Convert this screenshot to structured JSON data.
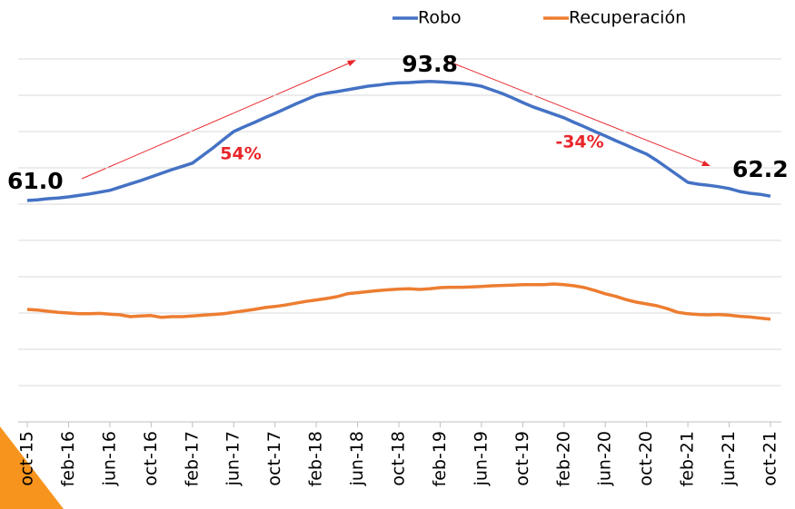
{
  "chart_data": {
    "type": "line",
    "categories": [
      "oct-15",
      null,
      null,
      null,
      "feb-16",
      null,
      null,
      null,
      "jun-16",
      null,
      null,
      null,
      "oct-16",
      null,
      null,
      null,
      "feb-17",
      null,
      null,
      null,
      "jun-17",
      null,
      null,
      null,
      "oct-17",
      null,
      null,
      null,
      "feb-18",
      null,
      null,
      null,
      "jun-18",
      null,
      null,
      null,
      "oct-18",
      null,
      null,
      null,
      "feb-19",
      null,
      null,
      null,
      "jun-19",
      null,
      null,
      null,
      "oct-19",
      null,
      null,
      null,
      "feb-20",
      null,
      null,
      null,
      "jun-20",
      null,
      null,
      null,
      "oct-20",
      null,
      null,
      null,
      "feb-21",
      null,
      null,
      null,
      "jun-21",
      null,
      null,
      null,
      "oct-21"
    ],
    "series": [
      {
        "name": "Robo",
        "color": "#4472c4",
        "values": [
          61.0,
          61.2,
          61.5,
          61.7,
          62.0,
          62.4,
          62.8,
          63.3,
          63.8,
          64.7,
          65.6,
          66.5,
          67.5,
          68.5,
          69.5,
          70.4,
          71.3,
          73.4,
          75.5,
          77.8,
          80.0,
          81.3,
          82.5,
          83.8,
          85.0,
          86.3,
          87.6,
          88.8,
          90.0,
          90.6,
          91.0,
          91.5,
          92.0,
          92.5,
          92.8,
          93.2,
          93.4,
          93.5,
          93.7,
          93.8,
          93.7,
          93.5,
          93.3,
          93.0,
          92.5,
          91.5,
          90.5,
          89.3,
          88.0,
          86.8,
          85.8,
          84.8,
          83.8,
          82.5,
          81.3,
          80.0,
          78.8,
          77.5,
          76.3,
          75.0,
          73.8,
          72.0,
          70.0,
          68.0,
          66.0,
          65.5,
          65.2,
          64.8,
          64.3,
          63.5,
          63.0,
          62.7,
          62.2
        ],
        "value_labels": [
          "61.0",
          null,
          null,
          null,
          null,
          null,
          null,
          null,
          null,
          null,
          null,
          null,
          null,
          null,
          null,
          null,
          null,
          null,
          null,
          null,
          null,
          null,
          null,
          null,
          null,
          null,
          null,
          null,
          null,
          null,
          null,
          null,
          null,
          null,
          null,
          null,
          null,
          null,
          null,
          "93.8",
          null,
          null,
          null,
          null,
          null,
          null,
          null,
          null,
          null,
          null,
          null,
          null,
          null,
          null,
          null,
          null,
          null,
          null,
          null,
          null,
          null,
          null,
          null,
          null,
          null,
          null,
          null,
          null,
          null,
          null,
          null,
          null,
          "62.2"
        ]
      },
      {
        "name": "Recuperación",
        "color": "#ed7d31",
        "values": [
          31.0,
          30.8,
          30.5,
          30.2,
          30.0,
          29.8,
          29.8,
          29.9,
          29.7,
          29.5,
          29.0,
          29.2,
          29.3,
          28.8,
          29.0,
          29.0,
          29.2,
          29.4,
          29.6,
          29.8,
          30.2,
          30.6,
          31.0,
          31.5,
          31.8,
          32.2,
          32.7,
          33.2,
          33.6,
          34.0,
          34.5,
          35.3,
          35.6,
          35.9,
          36.2,
          36.4,
          36.6,
          36.7,
          36.5,
          36.7,
          37.0,
          37.1,
          37.1,
          37.2,
          37.3,
          37.5,
          37.6,
          37.7,
          37.8,
          37.8,
          37.8,
          38.0,
          37.8,
          37.5,
          37.0,
          36.2,
          35.3,
          34.6,
          33.7,
          33.0,
          32.5,
          32.0,
          31.2,
          30.2,
          29.8,
          29.6,
          29.5,
          29.6,
          29.4,
          29.1,
          28.9,
          28.6,
          28.3
        ]
      }
    ],
    "annotations": [
      "54%",
      "-34%"
    ],
    "ylim": [
      0,
      100
    ],
    "yticks": [
      0,
      10,
      20,
      30,
      40,
      50,
      60,
      70,
      80,
      90,
      100
    ],
    "grid": true,
    "legend": "top"
  }
}
